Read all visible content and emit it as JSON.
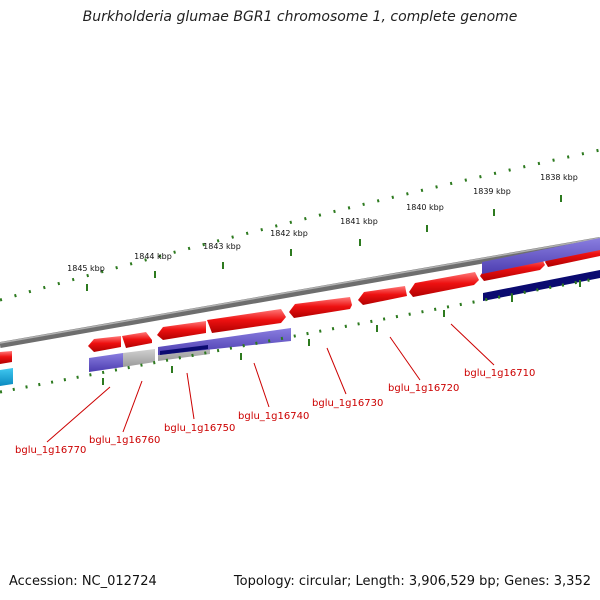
{
  "genome": {
    "title": "Burkholderia glumae BGR1 chromosome 1, complete genome",
    "accession_text": "Accession: NC_012724",
    "summary_text": "Topology: circular; Length: 3,906,529 bp; Genes: 3,352"
  },
  "scale": {
    "unit_suffix": " kbp",
    "ticks": [
      1838,
      1839,
      1840,
      1841,
      1842,
      1843,
      1844,
      1845
    ]
  },
  "genes": [
    {
      "id": "bglu_1g16710"
    },
    {
      "id": "bglu_1g16720"
    },
    {
      "id": "bglu_1g16730"
    },
    {
      "id": "bglu_1g16740"
    },
    {
      "id": "bglu_1g16750"
    },
    {
      "id": "bglu_1g16760"
    },
    {
      "id": "bglu_1g16770"
    }
  ],
  "colors": {
    "cds": "#ee1111",
    "cds_light": "#ff8a8a",
    "backbone": "#7a7a7a",
    "tick": "#2d7a1f",
    "label": "#cc0000",
    "feature_purple": "#6a5acd",
    "feature_navy": "#0a0a70",
    "feature_grey": "#b8b8b8",
    "feature_cyan": "#10a8e0"
  }
}
